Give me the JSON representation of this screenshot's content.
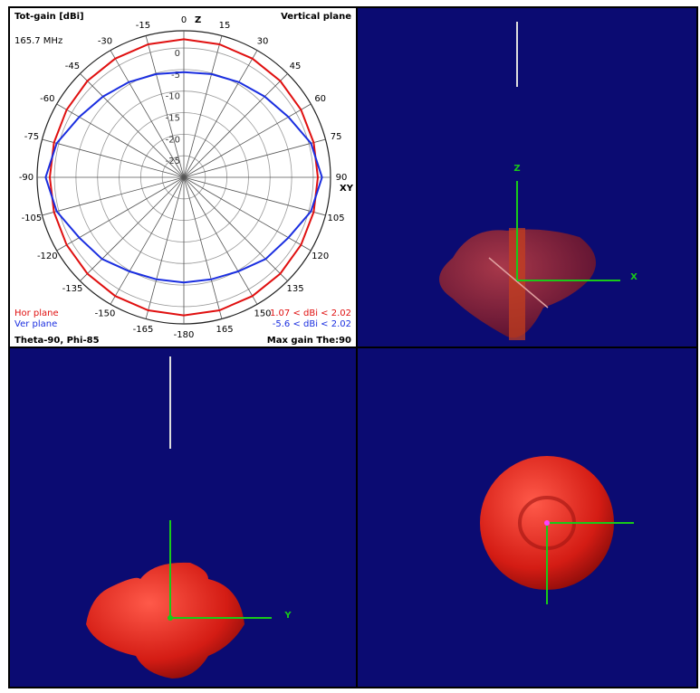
{
  "polar_plot": {
    "title": "Tot-gain [dBi]",
    "frequency": "165.7 MHz",
    "plane": "Vertical plane",
    "axis_top": "Z",
    "axis_right": "XY",
    "footer_left": "Theta-90, Phi-85",
    "footer_right": "Max gain The:90",
    "rlim": [
      -30,
      4
    ],
    "rticks": [
      -25,
      -20,
      -15,
      -10,
      -5,
      0
    ],
    "angles": [
      0,
      15,
      30,
      45,
      60,
      75,
      90,
      105,
      120,
      135,
      150,
      165,
      180,
      195,
      210,
      225,
      240,
      255,
      270,
      285,
      300,
      315,
      330,
      345
    ],
    "angle_ticks": [
      0,
      15,
      30,
      45,
      60,
      75,
      90,
      105,
      120,
      135,
      150,
      165,
      {
        "value": 180,
        "label": "-180"
      },
      {
        "value": 195,
        "label": "-165"
      },
      {
        "value": 210,
        "label": "-150"
      },
      {
        "value": 225,
        "label": "-135"
      },
      {
        "value": 240,
        "label": "-120"
      },
      {
        "value": 255,
        "label": "-105"
      },
      {
        "value": 270,
        "label": "-90"
      },
      {
        "value": 285,
        "label": "-75"
      },
      {
        "value": 300,
        "label": "-60"
      },
      {
        "value": 315,
        "label": "-45"
      },
      {
        "value": 330,
        "label": "-30"
      },
      {
        "value": 345,
        "label": "-15"
      }
    ],
    "series": [
      {
        "name": "Hor plane",
        "color": "#e01010",
        "range_label": "1.07 < dBi < 2.02",
        "values": [
          2.02,
          1.95,
          1.8,
          1.6,
          1.35,
          1.15,
          1.07,
          1.15,
          1.35,
          1.6,
          1.8,
          1.95,
          2.02,
          1.95,
          1.8,
          1.6,
          1.35,
          1.15,
          1.07,
          1.15,
          1.35,
          1.6,
          1.8,
          1.95
        ]
      },
      {
        "name": "Ver plane",
        "color": "#1a2ee0",
        "range_label": "-5.6 < dBi < 2.02",
        "values": [
          -5.6,
          -5.2,
          -4.5,
          -3.5,
          -2.0,
          0.5,
          2.02,
          0.5,
          -2.0,
          -3.2,
          -4.8,
          -5.5,
          -5.6,
          -5.5,
          -4.8,
          -3.2,
          -2.0,
          0.5,
          2.02,
          0.5,
          -2.0,
          -3.5,
          -4.5,
          -5.2
        ]
      }
    ]
  },
  "views": [
    {
      "axis_labels": [
        "Z",
        "X"
      ]
    },
    {
      "axis_labels": [
        "Y"
      ]
    },
    {
      "axis_labels": []
    }
  ]
}
